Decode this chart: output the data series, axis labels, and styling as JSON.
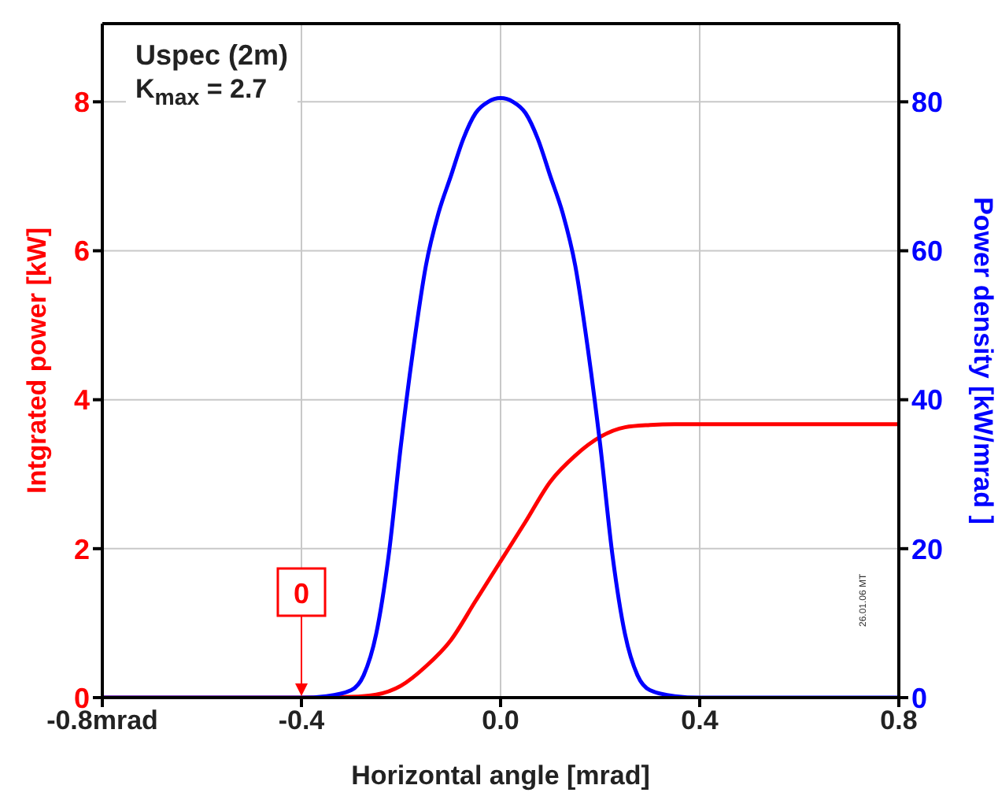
{
  "chart_data": {
    "type": "line",
    "title": "Uspec (2m)",
    "subtitle": "K$_{max}$ = 2.7",
    "xlabel": "Horizontal angle  [mrad]",
    "ylabel": "Intgrated power  [kW]",
    "y2label": "Power density  [kW/mrad ]",
    "xlim": [
      -0.8,
      0.8
    ],
    "xticks": [
      {
        "value": -0.8,
        "label": "-0.8mrad"
      },
      -0.4,
      {
        "value": 0,
        "label": "0.0"
      },
      0.4,
      0.8
    ],
    "ylim": [
      0,
      9.05
    ],
    "yticks": [
      0,
      2,
      4,
      6,
      8
    ],
    "y2lim": [
      0,
      90.5
    ],
    "y2ticks": [
      0,
      20,
      40,
      60,
      80
    ],
    "grid": true,
    "legend": false,
    "marker": "none",
    "line_style": "solid",
    "series": [
      {
        "color": "#ff0000",
        "x": [
          -0.8,
          -0.6,
          -0.4,
          -0.3,
          -0.25,
          -0.2,
          -0.15,
          -0.1,
          -0.05,
          0,
          0.05,
          0.1,
          0.15,
          0.2,
          0.25,
          0.3,
          0.35,
          0.4,
          0.6,
          0.8
        ],
        "values": [
          0,
          0,
          0,
          0.01,
          0.04,
          0.16,
          0.42,
          0.77,
          1.3,
          1.83,
          2.36,
          2.9,
          3.25,
          3.5,
          3.63,
          3.66,
          3.67,
          3.67,
          3.67,
          3.67
        ]
      },
      {
        "color": "#0000ff",
        "axis": "y2",
        "x": [
          -0.8,
          -0.6,
          -0.4,
          -0.35,
          -0.3,
          -0.275,
          -0.25,
          -0.225,
          -0.2,
          -0.175,
          -0.15,
          -0.125,
          -0.1,
          -0.075,
          -0.05,
          -0.025,
          0,
          0.025,
          0.05,
          0.075,
          0.1,
          0.125,
          0.15,
          0.175,
          0.2,
          0.225,
          0.25,
          0.275,
          0.3,
          0.35,
          0.4,
          0.6,
          0.8
        ],
        "values": [
          0,
          0,
          0,
          0.2,
          1,
          3,
          8.5,
          19,
          34,
          47,
          58,
          65,
          70,
          75,
          78.5,
          80,
          80.5,
          80,
          78.5,
          75,
          70,
          65,
          58,
          47,
          34,
          19,
          8.5,
          3,
          1,
          0.2,
          0,
          0,
          0
        ]
      }
    ],
    "annotations": [
      {
        "text": "0",
        "x": -0.4,
        "y": 0
      },
      "26.01.06 MT"
    ]
  }
}
